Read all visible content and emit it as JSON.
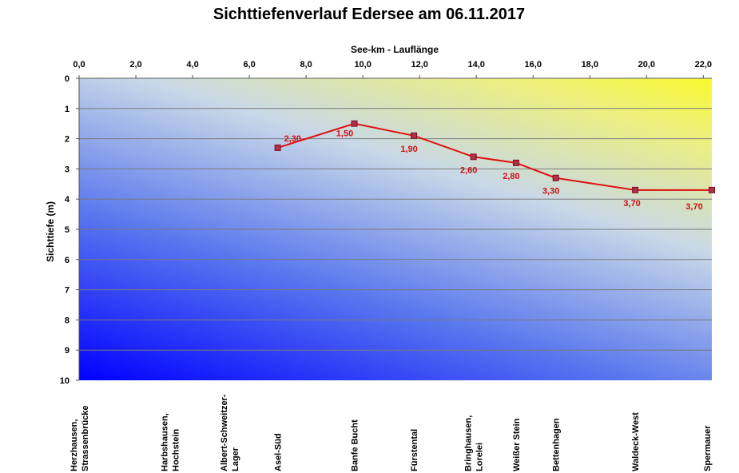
{
  "chart_data": {
    "type": "line",
    "title": "Sichttiefenverlauf Edersee am 06.11.2017",
    "xlabel": "See-km - Lauflänge",
    "ylabel": "Sichttiefe (m)",
    "xlim": [
      0,
      22.3
    ],
    "ylim": [
      0,
      10
    ],
    "y_inverted": true,
    "x_axis_position": "top",
    "x_ticks": [
      "0,0",
      "2,0",
      "4,0",
      "6,0",
      "8,0",
      "10,0",
      "12,0",
      "14,0",
      "16,0",
      "18,0",
      "20,0",
      "22,0"
    ],
    "y_ticks": [
      "0",
      "1",
      "2",
      "3",
      "4",
      "5",
      "6",
      "7",
      "8",
      "9",
      "10"
    ],
    "grid": true,
    "background": "gradient yellow (top-right) to blue (bottom-left)",
    "series": [
      {
        "color": "#e01010",
        "marker_color": "#b0304a",
        "points": [
          {
            "x": 7.0,
            "y": 2.3,
            "label": "2,30"
          },
          {
            "x": 9.7,
            "y": 1.5,
            "label": "1,50"
          },
          {
            "x": 11.8,
            "y": 1.9,
            "label": "1,90"
          },
          {
            "x": 13.9,
            "y": 2.6,
            "label": "2,60"
          },
          {
            "x": 15.4,
            "y": 2.8,
            "label": "2,80"
          },
          {
            "x": 16.8,
            "y": 3.3,
            "label": "3,30"
          },
          {
            "x": 19.6,
            "y": 3.7,
            "label": "3,70"
          },
          {
            "x": 22.3,
            "y": 3.7,
            "label": "3,70"
          }
        ]
      }
    ],
    "locations": [
      {
        "x": 0.0,
        "lines": [
          "Herzhausen,",
          "Strassenbrücke"
        ]
      },
      {
        "x": 3.2,
        "lines": [
          "Harbshausen,",
          "Hochstein"
        ]
      },
      {
        "x": 5.3,
        "lines": [
          "Albert-Schweitzer-",
          "Lager"
        ]
      },
      {
        "x": 7.0,
        "lines": [
          "Asel-Süd"
        ]
      },
      {
        "x": 9.7,
        "lines": [
          "Banfe Bucht"
        ]
      },
      {
        "x": 11.8,
        "lines": [
          "Fürstental"
        ]
      },
      {
        "x": 13.9,
        "lines": [
          "Bringhausen,",
          "Lorelei"
        ]
      },
      {
        "x": 15.4,
        "lines": [
          "Weißer Stein"
        ]
      },
      {
        "x": 16.8,
        "lines": [
          "Bettenhagen"
        ]
      },
      {
        "x": 19.6,
        "lines": [
          "Waldeck-West"
        ]
      },
      {
        "x": 22.3,
        "lines": [
          "Spermauer"
        ]
      }
    ]
  }
}
